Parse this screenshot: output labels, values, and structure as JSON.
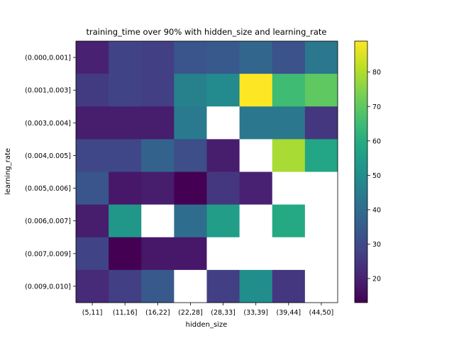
{
  "chart_data": {
    "type": "heatmap",
    "title": "training_time over 90% with hidden_size and learning_rate",
    "xlabel": "hidden_size",
    "ylabel": "learning_rate",
    "x_categories": [
      "(5,11]",
      "(11,16]",
      "(16,22]",
      "(22,28]",
      "(28,33]",
      "(33,39]",
      "(39,44]",
      "(44,50]"
    ],
    "y_categories": [
      "(0.000,0.001]",
      "(0.001,0.003]",
      "(0.003,0.004]",
      "(0.004,0.005]",
      "(0.005,0.006]",
      "(0.006,0.007]",
      "(0.007,0.009]",
      "(0.009,0.010]"
    ],
    "values": [
      [
        20,
        28,
        27,
        33,
        34,
        38,
        32,
        43
      ],
      [
        26,
        28,
        27,
        46,
        49,
        89,
        65,
        70
      ],
      [
        19,
        19,
        19,
        44,
        null,
        43,
        43,
        25
      ],
      [
        29,
        29,
        37,
        31,
        19,
        null,
        79,
        58
      ],
      [
        33,
        18,
        19,
        13,
        25,
        20,
        null,
        null
      ],
      [
        19,
        53,
        null,
        40,
        55,
        null,
        59,
        null
      ],
      [
        28,
        13,
        18,
        18,
        null,
        null,
        null,
        null
      ],
      [
        22,
        27,
        34,
        null,
        27,
        50,
        25,
        null
      ]
    ],
    "colorbar": {
      "min": 13,
      "max": 89,
      "ticks": [
        20,
        30,
        40,
        50,
        60,
        70,
        80
      ],
      "colormap": "viridis"
    },
    "missing_color": "#ffffff",
    "grid": false
  }
}
